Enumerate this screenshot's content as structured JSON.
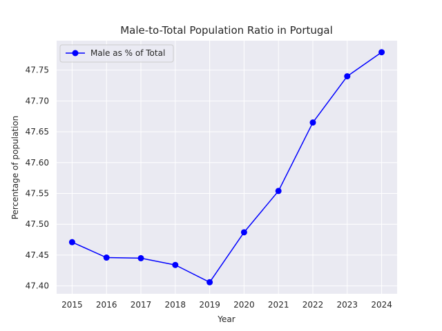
{
  "chart_data": {
    "type": "line",
    "title": "Male-to-Total Population Ratio in Portugal",
    "xlabel": "Year",
    "ylabel": "Percentage of population",
    "x": [
      2015,
      2016,
      2017,
      2018,
      2019,
      2020,
      2021,
      2022,
      2023,
      2024
    ],
    "series": [
      {
        "name": "Male as % of Total",
        "color": "#0000ff",
        "marker": "circle",
        "values": [
          47.471,
          47.446,
          47.445,
          47.434,
          47.406,
          47.487,
          47.554,
          47.665,
          47.74,
          47.779
        ]
      }
    ],
    "xlim": [
      2014.55,
      2024.45
    ],
    "ylim": [
      47.3873,
      47.7977
    ],
    "yticks": [
      47.4,
      47.45,
      47.5,
      47.55,
      47.6,
      47.65,
      47.7,
      47.75
    ],
    "ytick_labels": [
      "47.40",
      "47.45",
      "47.50",
      "47.55",
      "47.60",
      "47.65",
      "47.70",
      "47.75"
    ],
    "xtick_labels": [
      "2015",
      "2016",
      "2017",
      "2018",
      "2019",
      "2020",
      "2021",
      "2022",
      "2023",
      "2024"
    ],
    "grid": true,
    "legend_position": "top-left",
    "style": {
      "background": "#eaeaf2",
      "grid_color": "#ffffff",
      "text_color": "#262626"
    }
  }
}
